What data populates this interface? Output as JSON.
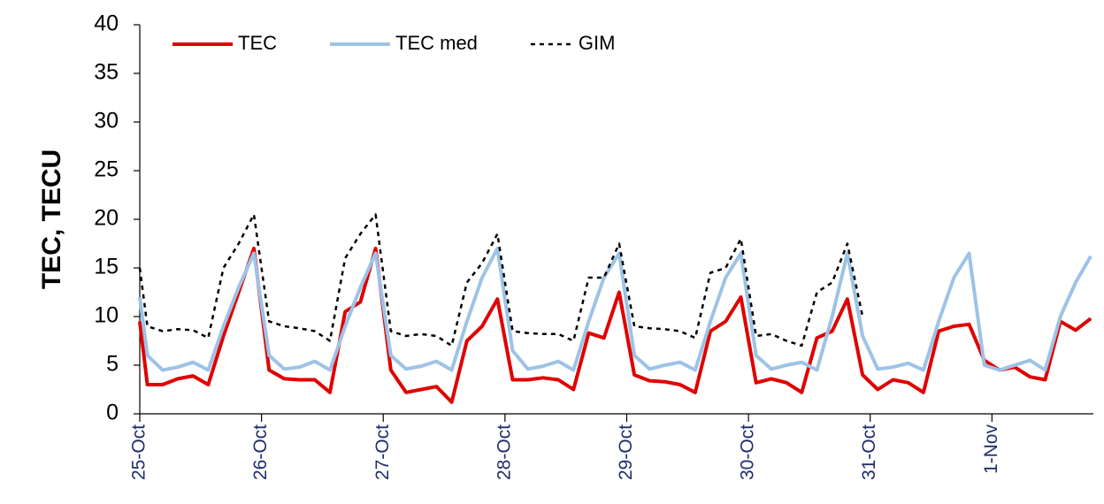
{
  "chart_data": {
    "type": "line",
    "ylabel": "TEC, TECU",
    "x": [
      0,
      1.5,
      4.5,
      7.5,
      10.5,
      13.5,
      16.5,
      19.5,
      22.5,
      25.5,
      28.5,
      31.5,
      34.5,
      37.5,
      40.5,
      43.5,
      46.5,
      49.5,
      52.5,
      55.5,
      58.5,
      61.5,
      64.5,
      67.5,
      70.5,
      73.5,
      76.5,
      79.5,
      82.5,
      85.5,
      88.5,
      91.5,
      94.5,
      97.5,
      100.5,
      103.5,
      106.5,
      109.5,
      112.5,
      115.5,
      118.5,
      121.5,
      124.5,
      127.5,
      130.5,
      133.5,
      136.5,
      139.5,
      142.5,
      145.5,
      148.5,
      151.5,
      154.5,
      157.5,
      160.5,
      163.5,
      166.5,
      169.5,
      172.5,
      175.5,
      178.5,
      181.5,
      184.5,
      187.5
    ],
    "series": [
      {
        "name": "TEC",
        "color": "#e00000",
        "style": "solid",
        "width": 4,
        "values": [
          9.5,
          3,
          3,
          3.6,
          3.9,
          3.0,
          8,
          12.5,
          17,
          4.5,
          3.6,
          3.5,
          3.5,
          2.2,
          10.5,
          11.5,
          17,
          4.5,
          2.2,
          2.5,
          2.8,
          1.2,
          7.5,
          9,
          11.8,
          3.5,
          3.5,
          3.7,
          3.5,
          2.5,
          8.3,
          7.8,
          12.5,
          4,
          3.4,
          3.3,
          3.0,
          2.2,
          8.5,
          9.5,
          12,
          3.2,
          3.6,
          3.2,
          2.2,
          7.8,
          8.5,
          11.8,
          4,
          2.5,
          3.5,
          3.2,
          2.2,
          8.5,
          9,
          9.2,
          5.5,
          4.5,
          4.8,
          3.8,
          3.5,
          9.5,
          8.6,
          9.8
        ]
      },
      {
        "name": "TEC med",
        "color": "#9dc3e6",
        "style": "solid",
        "width": 4,
        "values": [
          12,
          6,
          4.5,
          4.8,
          5.3,
          4.5,
          9,
          13,
          16.5,
          6,
          4.6,
          4.8,
          5.4,
          4.5,
          9,
          13,
          16.5,
          6,
          4.6,
          4.9,
          5.4,
          4.5,
          9.5,
          14,
          17,
          6.5,
          4.6,
          4.9,
          5.4,
          4.5,
          9.5,
          14,
          16.5,
          6,
          4.6,
          5,
          5.3,
          4.5,
          9.5,
          14,
          16.5,
          6,
          4.6,
          5,
          5.3,
          4.5,
          10,
          16.5,
          8,
          4.6,
          4.8,
          5.2,
          4.5,
          9.5,
          14,
          16.5,
          5,
          4.5,
          5,
          5.5,
          4.5,
          10,
          13.5,
          16.2
        ]
      },
      {
        "name": "GIM",
        "color": "#000000",
        "style": "dotted",
        "width": 2.5,
        "values": [
          15,
          9,
          8.5,
          8.7,
          8.6,
          7.8,
          15,
          17.5,
          20.5,
          9.5,
          9,
          8.8,
          8.5,
          7.5,
          16,
          18.5,
          20.5,
          8.5,
          8,
          8.2,
          8,
          7,
          13.5,
          15.5,
          18.5,
          8.5,
          8.3,
          8.2,
          8.2,
          7.5,
          14,
          14,
          17.5,
          9,
          8.8,
          8.7,
          8.5,
          7.8,
          14.5,
          15,
          18,
          8,
          8.2,
          7.5,
          7,
          12.5,
          13.5,
          17.5,
          10,
          null,
          null,
          null,
          null,
          null,
          null,
          null,
          null,
          null,
          null,
          null,
          null,
          null,
          null,
          null
        ]
      }
    ],
    "xlim": [
      0,
      188
    ],
    "xticks": [
      {
        "value": 0,
        "label": "25-Oct"
      },
      {
        "value": 24,
        "label": "26-Oct"
      },
      {
        "value": 48,
        "label": "27-Oct"
      },
      {
        "value": 72,
        "label": "28-Oct"
      },
      {
        "value": 96,
        "label": "29-Oct"
      },
      {
        "value": 120,
        "label": "30-Oct"
      },
      {
        "value": 144,
        "label": "31-Oct"
      },
      {
        "value": 168,
        "label": "1-Nov"
      }
    ],
    "ylim": [
      0,
      40
    ],
    "yticks": [
      0,
      5,
      10,
      15,
      20,
      25,
      30,
      35,
      40
    ],
    "legend": "upper left"
  }
}
